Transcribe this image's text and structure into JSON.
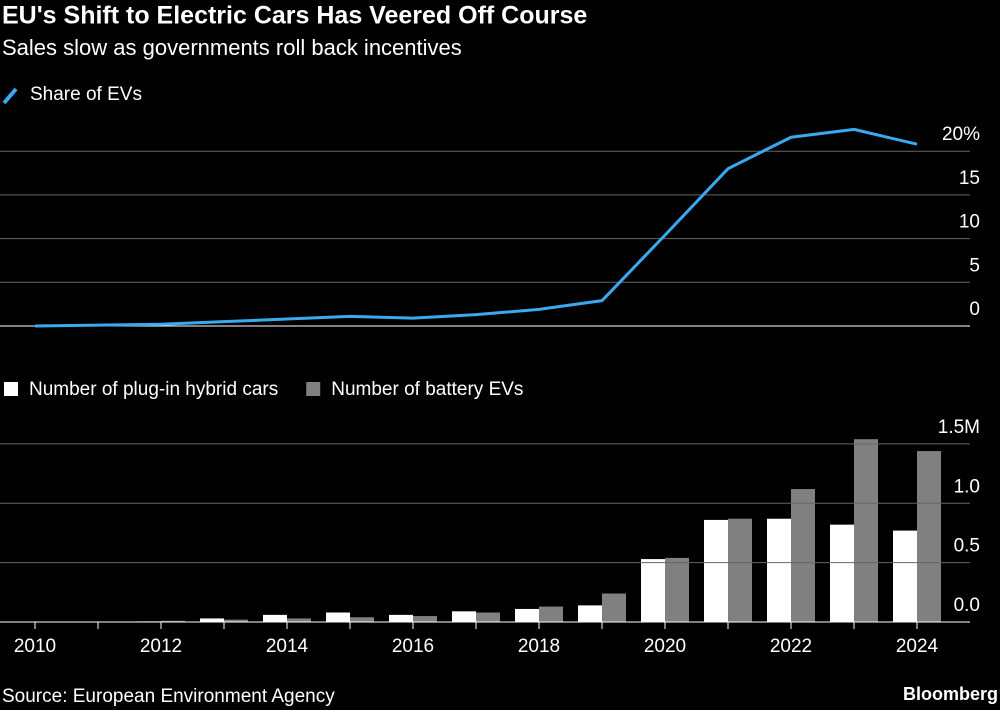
{
  "title": "EU's Shift to Electric Cars Has Veered Off Course",
  "subtitle": "Sales slow as governments roll back incentives",
  "source": "Source: European Environment Agency",
  "brand": "Bloomberg",
  "chart_data": [
    {
      "type": "line",
      "x": [
        2010,
        2011,
        2012,
        2013,
        2014,
        2015,
        2016,
        2017,
        2018,
        2019,
        2020,
        2021,
        2022,
        2023,
        2024
      ],
      "xlim": [
        2010,
        2024
      ],
      "series": [
        {
          "name": "Share of EVs",
          "color": "#3aa9f2",
          "values": [
            0.0,
            0.1,
            0.2,
            0.5,
            0.8,
            1.1,
            0.9,
            1.3,
            1.9,
            2.9,
            10.4,
            18.0,
            21.6,
            22.5,
            20.8
          ]
        }
      ],
      "ylim": [
        0,
        23
      ],
      "yticks": [
        0,
        5,
        10,
        15,
        {
          "value": 20,
          "label": "20%"
        }
      ],
      "grid": true
    },
    {
      "type": "bar",
      "categories": [
        "2010",
        null,
        "2012",
        null,
        "2014",
        null,
        "2016",
        null,
        "2018",
        null,
        "2020",
        null,
        "2022",
        null,
        "2024"
      ],
      "series": [
        {
          "name": "Number of plug-in hybrid cars",
          "color": "#ffffff",
          "values": [
            0.0,
            0.0,
            0.005,
            0.03,
            0.06,
            0.08,
            0.06,
            0.09,
            0.11,
            0.14,
            0.53,
            0.86,
            0.87,
            0.82,
            0.77
          ]
        },
        {
          "name": "Number of battery EVs",
          "color": "#808080",
          "values": [
            0.0,
            0.002,
            0.01,
            0.02,
            0.03,
            0.04,
            0.05,
            0.08,
            0.13,
            0.24,
            0.54,
            0.87,
            1.12,
            1.54,
            1.44
          ]
        }
      ],
      "ylim": [
        0,
        1.55
      ],
      "yticks": [
        {
          "value": 0,
          "label": "0.0"
        },
        0.5,
        {
          "value": 1,
          "label": "1.0"
        },
        {
          "value": 1.5,
          "label": "1.5M"
        }
      ],
      "grid": true
    }
  ]
}
